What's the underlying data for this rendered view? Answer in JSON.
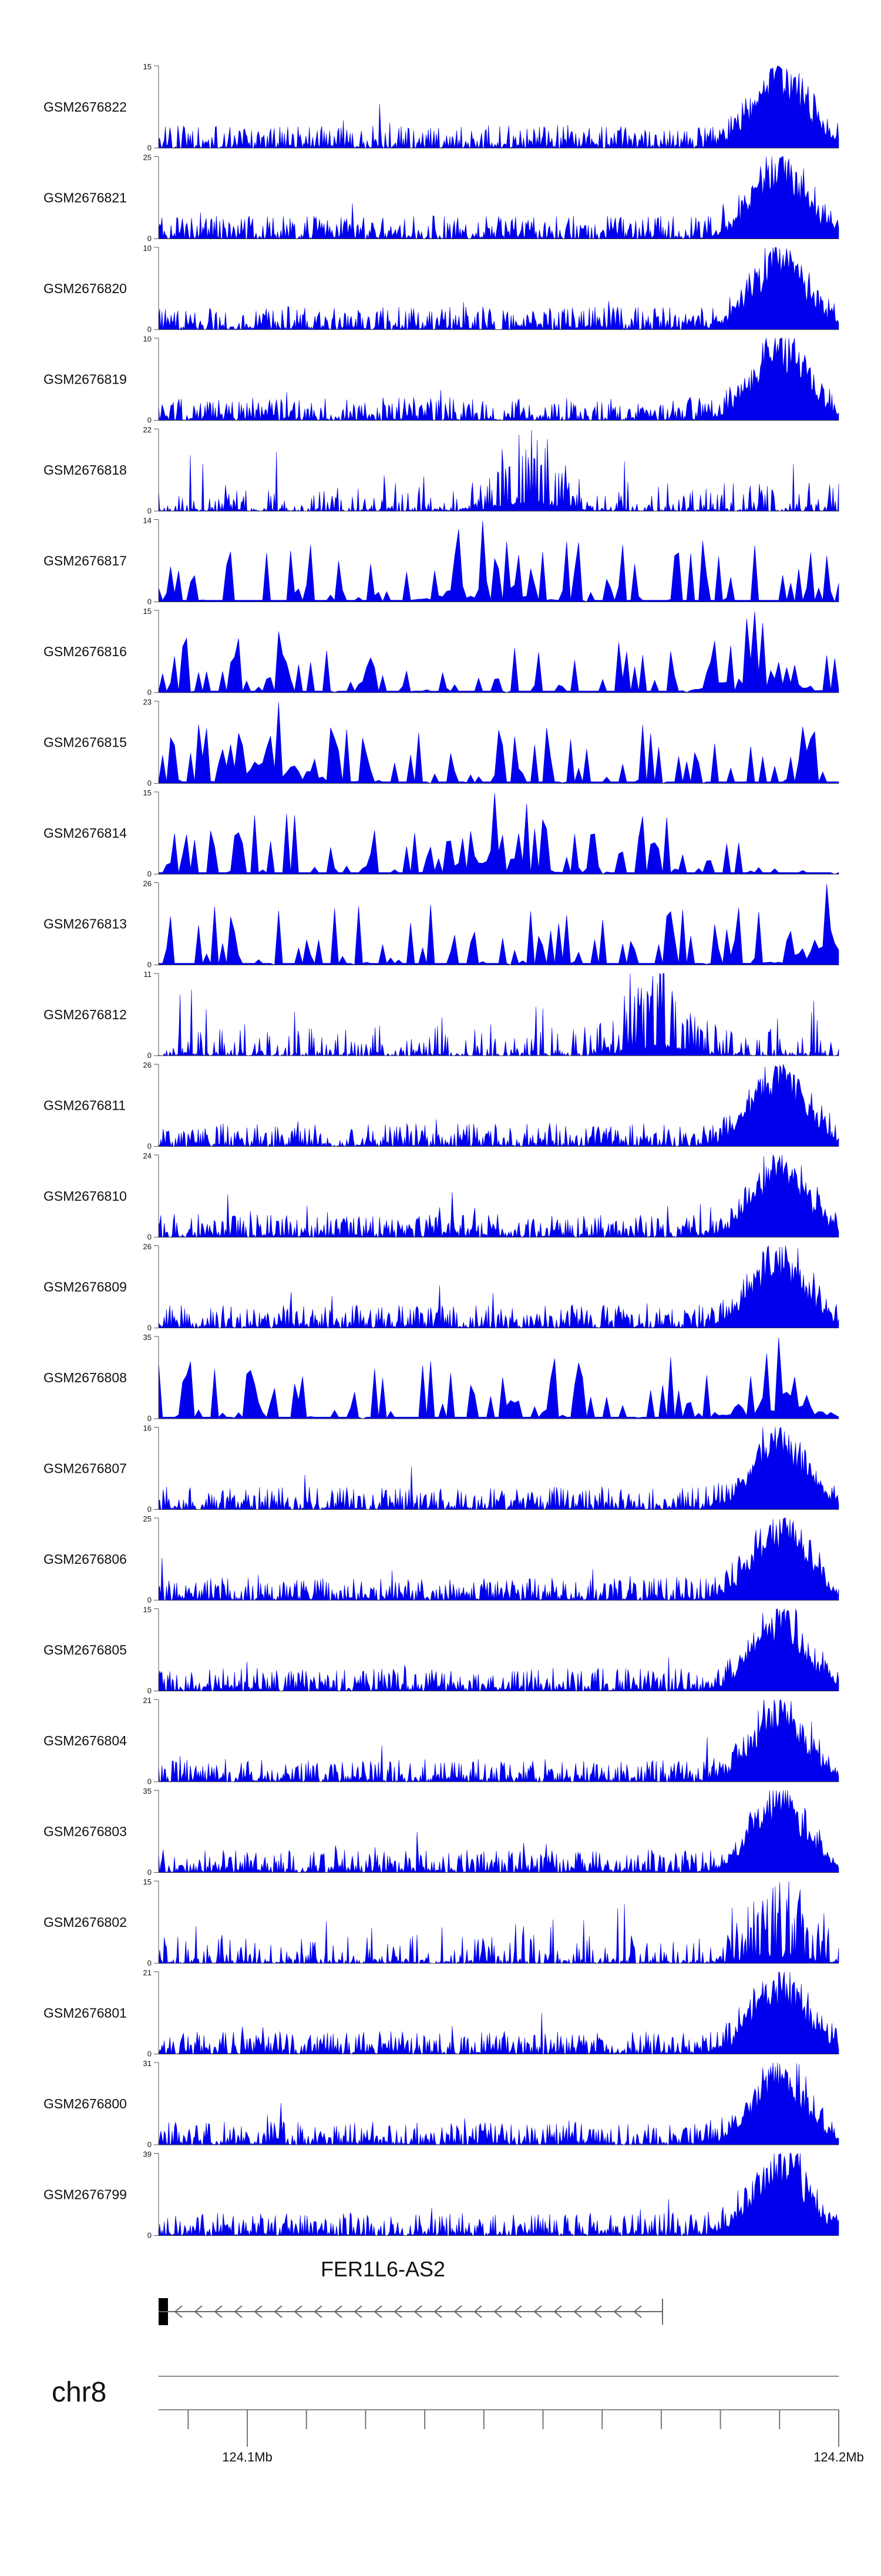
{
  "chart_data": {
    "type": "area",
    "title": "",
    "chromosome": "chr8",
    "gene": {
      "name": "FER1L6-AS2",
      "strand": "-"
    },
    "x_axis": {
      "unit": "Mb",
      "range": [
        124.085,
        124.2
      ],
      "tick_labels": [
        "124.1Mb",
        "124.2Mb"
      ]
    },
    "grid": false,
    "fill_color": "#0000ee",
    "tracks": [
      {
        "name": "GSM2676822",
        "ymax": 15,
        "peak_position": 124.19,
        "profile": "dense"
      },
      {
        "name": "GSM2676821",
        "ymax": 25,
        "peak_position": 124.19,
        "profile": "dense"
      },
      {
        "name": "GSM2676820",
        "ymax": 10,
        "peak_position": 124.19,
        "profile": "dense"
      },
      {
        "name": "GSM2676819",
        "ymax": 10,
        "peak_position": 124.19,
        "profile": "dense"
      },
      {
        "name": "GSM2676818",
        "ymax": 22,
        "peak_position": 124.148,
        "profile": "spiky"
      },
      {
        "name": "GSM2676817",
        "ymax": 14,
        "peak_position": 124.14,
        "profile": "sparse"
      },
      {
        "name": "GSM2676816",
        "ymax": 15,
        "peak_position": 124.186,
        "profile": "sparse"
      },
      {
        "name": "GSM2676815",
        "ymax": 23,
        "peak_position": 124.105,
        "profile": "sparse"
      },
      {
        "name": "GSM2676814",
        "ymax": 15,
        "peak_position": 124.142,
        "profile": "sparse"
      },
      {
        "name": "GSM2676813",
        "ymax": 26,
        "peak_position": 124.198,
        "profile": "sparse"
      },
      {
        "name": "GSM2676812",
        "ymax": 11,
        "peak_position": 124.17,
        "profile": "spiky"
      },
      {
        "name": "GSM2676811",
        "ymax": 26,
        "peak_position": 124.19,
        "profile": "dense"
      },
      {
        "name": "GSM2676810",
        "ymax": 24,
        "peak_position": 124.19,
        "profile": "dense"
      },
      {
        "name": "GSM2676809",
        "ymax": 26,
        "peak_position": 124.19,
        "profile": "dense"
      },
      {
        "name": "GSM2676808",
        "ymax": 35,
        "peak_position": 124.19,
        "profile": "sparse"
      },
      {
        "name": "GSM2676807",
        "ymax": 16,
        "peak_position": 124.19,
        "profile": "dense"
      },
      {
        "name": "GSM2676806",
        "ymax": 25,
        "peak_position": 124.19,
        "profile": "dense"
      },
      {
        "name": "GSM2676805",
        "ymax": 15,
        "peak_position": 124.19,
        "profile": "dense"
      },
      {
        "name": "GSM2676804",
        "ymax": 21,
        "peak_position": 124.19,
        "profile": "dense"
      },
      {
        "name": "GSM2676803",
        "ymax": 35,
        "peak_position": 124.19,
        "profile": "dense"
      },
      {
        "name": "GSM2676802",
        "ymax": 15,
        "peak_position": 124.19,
        "profile": "spiky"
      },
      {
        "name": "GSM2676801",
        "ymax": 21,
        "peak_position": 124.19,
        "profile": "dense"
      },
      {
        "name": "GSM2676800",
        "ymax": 31,
        "peak_position": 124.19,
        "profile": "dense"
      },
      {
        "name": "GSM2676799",
        "ymax": 39,
        "peak_position": 124.19,
        "profile": "dense"
      }
    ]
  }
}
